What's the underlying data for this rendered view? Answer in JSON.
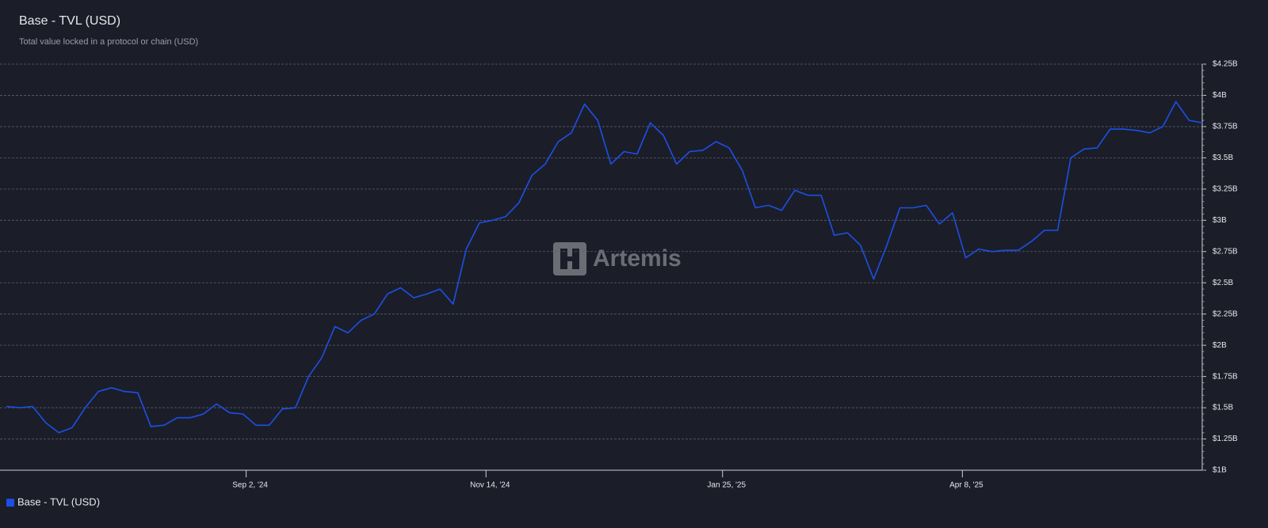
{
  "chart_data": {
    "type": "line",
    "title": "Base - TVL (USD)",
    "subtitle": "Total value locked in a protocol or chain (USD)",
    "watermark": "Artemis",
    "x": [
      "2024-06-21",
      "2024-06-25",
      "2024-06-29",
      "2024-07-03",
      "2024-07-07",
      "2024-07-11",
      "2024-07-15",
      "2024-07-19",
      "2024-07-23",
      "2024-07-27",
      "2024-07-31",
      "2024-08-04",
      "2024-08-08",
      "2024-08-12",
      "2024-08-16",
      "2024-08-20",
      "2024-08-24",
      "2024-08-28",
      "2024-09-01",
      "2024-09-05",
      "2024-09-09",
      "2024-09-13",
      "2024-09-17",
      "2024-09-21",
      "2024-09-25",
      "2024-09-29",
      "2024-10-03",
      "2024-10-07",
      "2024-10-11",
      "2024-10-15",
      "2024-10-19",
      "2024-10-23",
      "2024-10-27",
      "2024-10-31",
      "2024-11-04",
      "2024-11-08",
      "2024-11-12",
      "2024-11-16",
      "2024-11-20",
      "2024-11-24",
      "2024-11-28",
      "2024-12-02",
      "2024-12-06",
      "2024-12-10",
      "2024-12-14",
      "2024-12-18",
      "2024-12-22",
      "2024-12-26",
      "2024-12-30",
      "2025-01-03",
      "2025-01-07",
      "2025-01-11",
      "2025-01-15",
      "2025-01-19",
      "2025-01-23",
      "2025-01-27",
      "2025-01-31",
      "2025-02-04",
      "2025-02-08",
      "2025-02-12",
      "2025-02-16",
      "2025-02-20",
      "2025-02-24",
      "2025-02-28",
      "2025-03-04",
      "2025-03-08",
      "2025-03-12",
      "2025-03-16",
      "2025-03-20",
      "2025-03-24",
      "2025-03-28",
      "2025-04-01",
      "2025-04-05",
      "2025-04-09",
      "2025-04-13",
      "2025-04-17",
      "2025-04-21",
      "2025-04-25",
      "2025-04-29",
      "2025-05-03",
      "2025-05-07",
      "2025-05-11",
      "2025-05-15",
      "2025-05-19",
      "2025-05-23",
      "2025-05-27",
      "2025-05-31",
      "2025-06-04",
      "2025-06-08",
      "2025-06-12",
      "2025-06-16",
      "2025-06-20"
    ],
    "series": [
      {
        "name": "Base - TVL (USD)",
        "color": "#1d4fe6",
        "values": [
          1510000000,
          1500000000,
          1510000000,
          1380000000,
          1300000000,
          1340000000,
          1500000000,
          1630000000,
          1660000000,
          1630000000,
          1620000000,
          1350000000,
          1360000000,
          1420000000,
          1420000000,
          1450000000,
          1530000000,
          1460000000,
          1450000000,
          1360000000,
          1360000000,
          1490000000,
          1500000000,
          1750000000,
          1900000000,
          2150000000,
          2100000000,
          2200000000,
          2250000000,
          2410000000,
          2460000000,
          2380000000,
          2410000000,
          2450000000,
          2330000000,
          2770000000,
          2980000000,
          3000000000,
          3030000000,
          3140000000,
          3360000000,
          3450000000,
          3630000000,
          3700000000,
          3930000000,
          3800000000,
          3450000000,
          3550000000,
          3530000000,
          3780000000,
          3680000000,
          3450000000,
          3550000000,
          3560000000,
          3630000000,
          3580000000,
          3400000000,
          3100000000,
          3120000000,
          3080000000,
          3240000000,
          3200000000,
          3200000000,
          2880000000,
          2900000000,
          2800000000,
          2530000000,
          2800000000,
          3100000000,
          3100000000,
          3120000000,
          2970000000,
          3060000000,
          2700000000,
          2770000000,
          2750000000,
          2760000000,
          2760000000,
          2830000000,
          2920000000,
          2920000000,
          3500000000,
          3570000000,
          3580000000,
          3730000000,
          3730000000,
          3720000000,
          3700000000,
          3750000000,
          3950000000,
          3800000000,
          3780000000
        ]
      }
    ],
    "xlim": [
      "2024-06-21",
      "2025-06-20"
    ],
    "xticks": [
      {
        "value": "2024-09-02",
        "label": "Sep 2, '24"
      },
      {
        "value": "2024-11-14",
        "label": "Nov 14, '24"
      },
      {
        "value": "2025-01-25",
        "label": "Jan 25, '25"
      },
      {
        "value": "2025-04-08",
        "label": "Apr 8, '25"
      }
    ],
    "ylim": [
      1000000000,
      4250000000
    ],
    "yticks": [
      {
        "value": 1000000000,
        "label": "$1B"
      },
      {
        "value": 1250000000,
        "label": "$1.25B"
      },
      {
        "value": 1500000000,
        "label": "$1.5B"
      },
      {
        "value": 1750000000,
        "label": "$1.75B"
      },
      {
        "value": 2000000000,
        "label": "$2B"
      },
      {
        "value": 2250000000,
        "label": "$2.25B"
      },
      {
        "value": 2500000000,
        "label": "$2.5B"
      },
      {
        "value": 2750000000,
        "label": "$2.75B"
      },
      {
        "value": 3000000000,
        "label": "$3B"
      },
      {
        "value": 3250000000,
        "label": "$3.25B"
      },
      {
        "value": 3500000000,
        "label": "$3.5B"
      },
      {
        "value": 3750000000,
        "label": "$3.75B"
      },
      {
        "value": 4000000000,
        "label": "$4B"
      },
      {
        "value": 4250000000,
        "label": "$4.25B"
      }
    ],
    "grid": true,
    "legend": "bottom-left"
  }
}
